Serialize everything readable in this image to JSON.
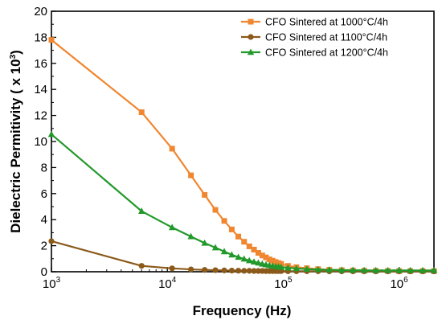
{
  "chart_data": {
    "type": "line",
    "xscale": "log",
    "xlabel": "Frequency (Hz)",
    "ylabel_main": "Dielectric Permitivity ( x 10",
    "ylabel_sup": "3",
    "ylabel_tail": ")",
    "xlim": [
      1000,
      2000000
    ],
    "ylim": [
      0,
      20
    ],
    "yticks": [
      "0",
      "2",
      "4",
      "6",
      "8",
      "10",
      "12",
      "14",
      "16",
      "18",
      "20"
    ],
    "xticks": [
      {
        "base": "10",
        "exp": "3",
        "value": 1000
      },
      {
        "base": "10",
        "exp": "4",
        "value": 10000
      },
      {
        "base": "10",
        "exp": "5",
        "value": 100000
      },
      {
        "base": "10",
        "exp": "6",
        "value": 1000000
      }
    ],
    "legend_position": "top-right",
    "series": [
      {
        "name": "CFO Sintered at 1000°C/4h",
        "color": "#F0862F",
        "marker": "square",
        "x": [
          1000,
          6000,
          11000,
          16000,
          21000,
          26000,
          31000,
          36000,
          41000,
          46000,
          51000,
          56000,
          61000,
          66000,
          71000,
          76000,
          81000,
          86000,
          91000,
          96000,
          110000,
          130000,
          160000,
          200000,
          250000,
          320000,
          400000,
          500000,
          630000,
          800000,
          1000000,
          1250000,
          1600000,
          2000000
        ],
        "y": [
          17.8,
          12.25,
          9.45,
          7.4,
          5.9,
          4.75,
          3.9,
          3.25,
          2.7,
          2.3,
          1.95,
          1.7,
          1.45,
          1.25,
          1.1,
          0.95,
          0.85,
          0.75,
          0.67,
          0.6,
          0.45,
          0.35,
          0.27,
          0.2,
          0.15,
          0.12,
          0.1,
          0.08,
          0.07,
          0.06,
          0.05,
          0.05,
          0.05,
          0.05
        ]
      },
      {
        "name": "CFO Sintered at 1100°C/4h",
        "color": "#8B5A1B",
        "marker": "circle",
        "x": [
          1000,
          6000,
          11000,
          16000,
          21000,
          26000,
          31000,
          36000,
          41000,
          46000,
          51000,
          56000,
          61000,
          66000,
          71000,
          76000,
          81000,
          86000,
          91000,
          96000,
          110000,
          130000,
          160000,
          200000,
          250000,
          320000,
          400000,
          500000,
          630000,
          800000,
          1000000,
          1250000,
          1600000,
          2000000
        ],
        "y": [
          2.35,
          0.45,
          0.26,
          0.18,
          0.14,
          0.12,
          0.1,
          0.09,
          0.08,
          0.07,
          0.07,
          0.06,
          0.06,
          0.06,
          0.05,
          0.05,
          0.05,
          0.05,
          0.05,
          0.05,
          0.04,
          0.04,
          0.04,
          0.04,
          0.03,
          0.03,
          0.03,
          0.03,
          0.03,
          0.03,
          0.03,
          0.03,
          0.03,
          0.03
        ]
      },
      {
        "name": "CFO Sintered at 1200°C/4h",
        "color": "#22992A",
        "marker": "triangle",
        "x": [
          1000,
          6000,
          11000,
          16000,
          21000,
          26000,
          31000,
          36000,
          41000,
          46000,
          51000,
          56000,
          61000,
          66000,
          71000,
          76000,
          81000,
          86000,
          91000,
          96000,
          110000,
          130000,
          160000,
          200000,
          250000,
          320000,
          400000,
          500000,
          630000,
          800000,
          1000000,
          1250000,
          1600000,
          2000000
        ],
        "y": [
          10.55,
          4.65,
          3.4,
          2.7,
          2.2,
          1.85,
          1.55,
          1.3,
          1.12,
          0.98,
          0.86,
          0.76,
          0.68,
          0.6,
          0.54,
          0.49,
          0.45,
          0.41,
          0.38,
          0.35,
          0.3,
          0.25,
          0.2,
          0.17,
          0.15,
          0.13,
          0.12,
          0.11,
          0.1,
          0.1,
          0.1,
          0.1,
          0.1,
          0.1
        ]
      }
    ]
  }
}
